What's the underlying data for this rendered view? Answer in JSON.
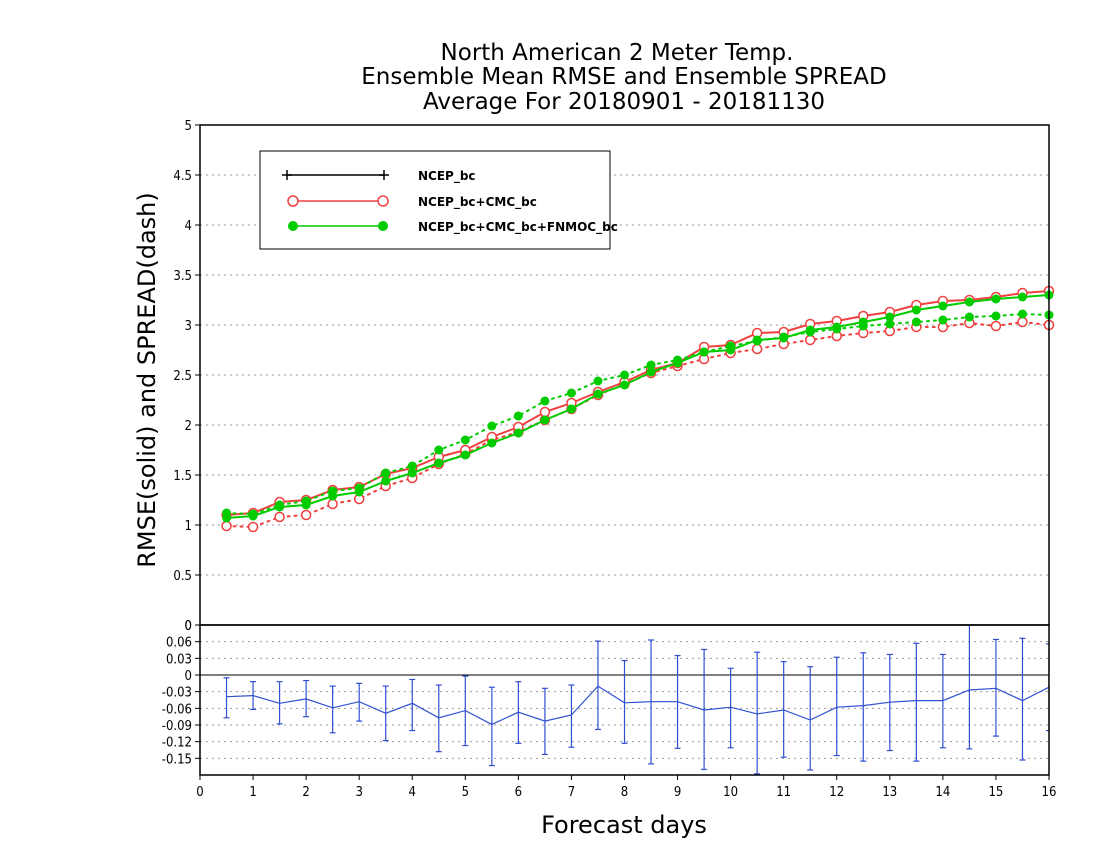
{
  "chart_data": {
    "type": "line",
    "title": [
      "North American 2 Meter Temp.",
      "Ensemble Mean RMSE and Ensemble SPREAD",
      "Average For 20180901 - 20181130"
    ],
    "xlabel": "Forecast days",
    "ylabel": "RMSE(solid) and SPREAD(dash)",
    "xlim": [
      0,
      16
    ],
    "ylim": [
      0,
      5
    ],
    "xticks": [
      "0",
      "1",
      "2",
      "3",
      "4",
      "5",
      "6",
      "7",
      "8",
      "9",
      "10",
      "11",
      "12",
      "13",
      "14",
      "15",
      "16"
    ],
    "yticks": [
      "0",
      "0.5",
      "1",
      "1.5",
      "2",
      "2.5",
      "3",
      "3.5",
      "4",
      "4.5",
      "5"
    ],
    "grid": true,
    "legend_position": "top-left",
    "x": [
      0.5,
      1,
      1.5,
      2,
      2.5,
      3,
      3.5,
      4,
      4.5,
      5,
      5.5,
      6,
      6.5,
      7,
      7.5,
      8,
      8.5,
      9,
      9.5,
      10,
      10.5,
      11,
      11.5,
      12,
      12.5,
      13,
      13.5,
      14,
      14.5,
      15,
      15.5,
      16
    ],
    "series": [
      {
        "name": "NCEP_bc",
        "color": "#000000",
        "marker": "plus",
        "rmse": [],
        "spread": []
      },
      {
        "name": "NCEP_bc+CMC_bc",
        "color": "#f04040",
        "marker": "open-circle",
        "rmse": [
          1.1,
          1.12,
          1.23,
          1.25,
          1.35,
          1.38,
          1.51,
          1.57,
          1.68,
          1.75,
          1.88,
          1.98,
          2.13,
          2.22,
          2.33,
          2.43,
          2.55,
          2.62,
          2.78,
          2.8,
          2.92,
          2.93,
          3.01,
          3.04,
          3.09,
          3.13,
          3.2,
          3.24,
          3.25,
          3.28,
          3.32,
          3.34
        ],
        "spread": [
          0.99,
          0.98,
          1.08,
          1.1,
          1.21,
          1.26,
          1.39,
          1.47,
          1.61,
          1.71,
          1.85,
          1.93,
          2.05,
          2.16,
          2.3,
          2.41,
          2.52,
          2.59,
          2.66,
          2.72,
          2.76,
          2.81,
          2.85,
          2.89,
          2.92,
          2.94,
          2.98,
          2.98,
          3.02,
          2.99,
          3.03,
          3.0
        ]
      },
      {
        "name": "NCEP_bc+CMC_bc+FNMOC_bc",
        "color": "#00cc00",
        "marker": "filled-circle",
        "rmse": [
          1.07,
          1.09,
          1.18,
          1.2,
          1.29,
          1.33,
          1.44,
          1.52,
          1.62,
          1.7,
          1.82,
          1.92,
          2.05,
          2.16,
          2.31,
          2.4,
          2.53,
          2.62,
          2.73,
          2.75,
          2.85,
          2.87,
          2.95,
          2.98,
          3.03,
          3.08,
          3.15,
          3.19,
          3.23,
          3.26,
          3.28,
          3.3
        ],
        "spread": [
          1.12,
          1.11,
          1.2,
          1.24,
          1.34,
          1.37,
          1.52,
          1.59,
          1.75,
          1.85,
          1.99,
          2.09,
          2.24,
          2.32,
          2.44,
          2.5,
          2.6,
          2.65,
          2.73,
          2.79,
          2.84,
          2.88,
          2.93,
          2.96,
          2.99,
          3.01,
          3.03,
          3.05,
          3.08,
          3.09,
          3.11,
          3.1
        ]
      }
    ],
    "difference_panel": {
      "type": "line-errorbar",
      "ylim": [
        -0.18,
        0.09
      ],
      "yticks": [
        "0.06",
        "0.03",
        "0",
        "-0.03",
        "-0.06",
        "-0.09",
        "-0.12",
        "-0.15"
      ],
      "color": "#3050d0",
      "x": [
        0.5,
        1,
        1.5,
        2,
        2.5,
        3,
        3.5,
        4,
        4.5,
        5,
        5.5,
        6,
        6.5,
        7,
        7.5,
        8,
        8.5,
        9,
        9.5,
        10,
        10.5,
        11,
        11.5,
        12,
        12.5,
        13,
        13.5,
        14,
        14.5,
        15,
        15.5,
        16
      ],
      "mean": [
        -0.039,
        -0.037,
        -0.051,
        -0.043,
        -0.059,
        -0.048,
        -0.069,
        -0.051,
        -0.077,
        -0.064,
        -0.089,
        -0.067,
        -0.083,
        -0.072,
        -0.02,
        -0.05,
        -0.048,
        -0.048,
        -0.063,
        -0.058,
        -0.07,
        -0.063,
        -0.081,
        -0.058,
        -0.055,
        -0.049,
        -0.046,
        -0.046,
        -0.027,
        -0.024,
        -0.046,
        -0.022
      ],
      "upper": [
        -0.005,
        -0.012,
        -0.012,
        -0.01,
        -0.02,
        -0.015,
        -0.02,
        -0.008,
        -0.018,
        -0.002,
        -0.022,
        -0.012,
        -0.024,
        -0.018,
        0.061,
        0.026,
        0.063,
        0.035,
        0.046,
        0.012,
        0.041,
        0.024,
        0.015,
        0.032,
        0.04,
        0.037,
        0.057,
        0.037,
        0.09,
        0.064,
        0.066,
        0.056
      ],
      "lower": [
        -0.077,
        -0.062,
        -0.088,
        -0.075,
        -0.104,
        -0.083,
        -0.118,
        -0.1,
        -0.138,
        -0.127,
        -0.163,
        -0.123,
        -0.143,
        -0.13,
        -0.098,
        -0.123,
        -0.16,
        -0.132,
        -0.17,
        -0.131,
        -0.178,
        -0.148,
        -0.171,
        -0.145,
        -0.155,
        -0.136,
        -0.155,
        -0.131,
        -0.133,
        -0.11,
        -0.153,
        -0.1
      ]
    }
  }
}
